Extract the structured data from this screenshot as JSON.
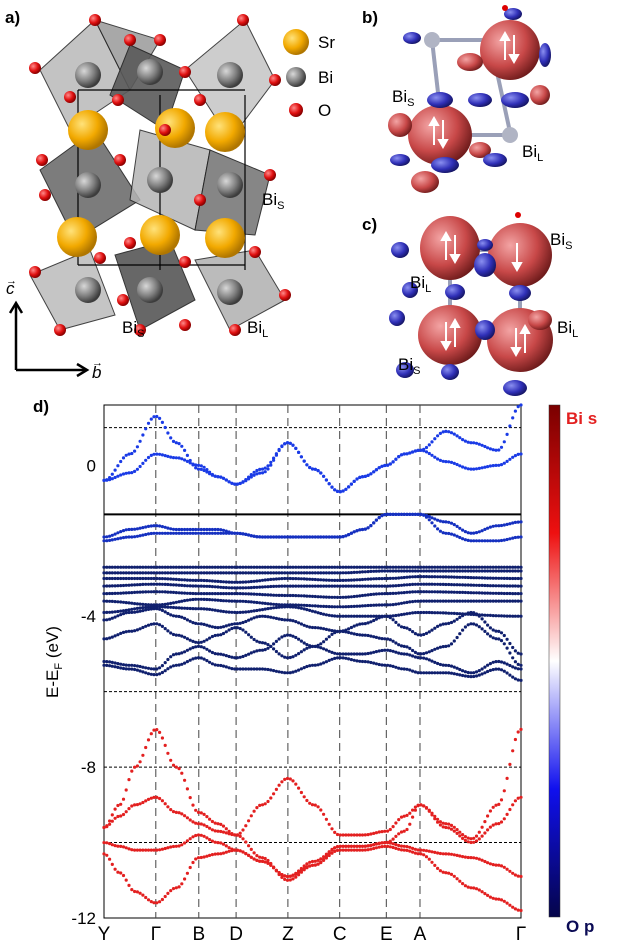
{
  "panels": {
    "a": "a)",
    "b": "b)",
    "c": "c)",
    "d": "d)"
  },
  "legend": [
    {
      "label": "Sr",
      "color": "#F2A900"
    },
    {
      "label": "Bi",
      "color": "#7a7a7a"
    },
    {
      "label": "O",
      "color": "#e01010"
    }
  ],
  "axes_labels": {
    "c_vec": "c",
    "b_vec": "b"
  },
  "atom_labels": {
    "a_bis_top": {
      "main": "Bi",
      "sub": "S"
    },
    "a_bis_bottom": {
      "main": "Bi",
      "sub": "S"
    },
    "a_bil": {
      "main": "Bi",
      "sub": "L"
    },
    "b_bis": {
      "main": "Bi",
      "sub": "S"
    },
    "b_bil": {
      "main": "Bi",
      "sub": "L"
    },
    "c_bis_top": {
      "main": "Bi",
      "sub": "S"
    },
    "c_bil_top": {
      "main": "Bi",
      "sub": "L"
    },
    "c_bil_bottom": {
      "main": "Bi",
      "sub": "L"
    },
    "c_bis_bottom": {
      "main": "Bi",
      "sub": "S"
    }
  },
  "colorbar": {
    "top_label": "Bi s",
    "bottom_label": "O p",
    "top_color": "#8b0000",
    "mid_color": "#ffffff",
    "bottom_color": "#0b0b55"
  },
  "chart_data": {
    "type": "line",
    "title": "",
    "xlabel": "",
    "ylabel": "E-E",
    "ylabel_sub": "F",
    "ylabel_unit": " (eV)",
    "ylim": [
      -12,
      1.6
    ],
    "yticks": [
      "0",
      "-4",
      "-8",
      "-12"
    ],
    "ytick_values": [
      0,
      -4,
      -8,
      -12
    ],
    "kpoints": [
      "Y",
      "Γ",
      "B",
      "D",
      "Z",
      "C",
      "E",
      "A",
      "Γ"
    ],
    "kpoint_positions": [
      0,
      1,
      1.83,
      2.55,
      3.55,
      4.55,
      5.45,
      6.1,
      8.05
    ],
    "hlines": [
      1.0,
      -1.3,
      -6.0,
      -8.0,
      -10.0
    ],
    "fermi_line": -1.3,
    "series": [
      {
        "color": "#1a3be6",
        "x": [
          0,
          0.5,
          1,
          1.4,
          1.83,
          2.2,
          2.55,
          3.05,
          3.55,
          4.05,
          4.55,
          5.0,
          5.45,
          5.8,
          6.1,
          6.6,
          7.1,
          7.6,
          8.05
        ],
        "y": [
          -0.4,
          0.3,
          1.3,
          0.6,
          -0.1,
          -0.3,
          -0.5,
          -0.1,
          0.6,
          -0.1,
          -0.7,
          -0.3,
          0,
          0.3,
          0.4,
          0.9,
          0.6,
          0.4,
          1.6
        ]
      },
      {
        "color": "#1a3be6",
        "x": [
          0,
          0.5,
          1,
          1.4,
          1.83,
          2.2,
          2.55,
          3.05,
          3.55,
          4.05,
          4.55,
          5.0,
          5.45,
          5.8,
          6.1,
          6.6,
          7.1,
          7.6,
          8.05
        ],
        "y": [
          -0.4,
          -0.2,
          0.3,
          0.2,
          0.0,
          -0.3,
          -0.5,
          -0.2,
          0.6,
          -0.1,
          -0.7,
          -0.3,
          0,
          0.3,
          0.4,
          0.1,
          -0.1,
          0.0,
          0.3
        ]
      },
      {
        "color": "#1530c0",
        "x": [
          0,
          0.5,
          1,
          1.4,
          1.83,
          2.2,
          2.55,
          3.05,
          3.55,
          4.05,
          4.55,
          5.0,
          5.45,
          5.8,
          6.1,
          6.6,
          7.1,
          7.6,
          8.05
        ],
        "y": [
          -1.9,
          -1.7,
          -1.6,
          -1.7,
          -1.7,
          -1.7,
          -1.8,
          -1.9,
          -1.9,
          -1.9,
          -1.9,
          -1.7,
          -1.3,
          -1.3,
          -1.3,
          -1.5,
          -1.8,
          -1.6,
          -1.5
        ]
      },
      {
        "color": "#1530c0",
        "x": [
          0,
          0.5,
          1,
          1.4,
          1.83,
          2.2,
          2.55,
          3.05,
          3.55,
          4.05,
          4.55,
          5.0,
          5.45,
          5.8,
          6.1,
          6.6,
          7.1,
          7.6,
          8.05
        ],
        "y": [
          -2.0,
          -1.9,
          -1.8,
          -1.8,
          -1.8,
          -1.8,
          -1.8,
          -1.9,
          -1.9,
          -1.9,
          -1.9,
          -1.7,
          -1.3,
          -1.3,
          -1.3,
          -1.8,
          -2.0,
          -2.0,
          -1.9
        ]
      },
      {
        "color": "#10206e",
        "x": [
          0,
          1,
          1.83,
          2.55,
          3.55,
          4.55,
          5.45,
          6.1,
          8.05
        ],
        "y": [
          -2.7,
          -2.7,
          -2.7,
          -2.7,
          -2.7,
          -2.7,
          -2.7,
          -2.7,
          -2.7
        ]
      },
      {
        "color": "#10206e",
        "x": [
          0,
          1,
          1.83,
          2.55,
          3.55,
          4.55,
          5.45,
          6.1,
          8.05
        ],
        "y": [
          -2.85,
          -2.85,
          -2.85,
          -2.85,
          -2.85,
          -2.85,
          -2.8,
          -2.8,
          -2.8
        ]
      },
      {
        "color": "#10206e",
        "x": [
          0,
          1,
          1.83,
          2.55,
          3.55,
          4.55,
          5.45,
          6.1,
          8.05
        ],
        "y": [
          -3.0,
          -3.0,
          -3.05,
          -3.1,
          -3.0,
          -3.05,
          -3.0,
          -2.95,
          -3.0
        ]
      },
      {
        "color": "#10206e",
        "x": [
          0,
          1,
          1.83,
          2.55,
          3.55,
          4.55,
          5.45,
          6.1,
          8.05
        ],
        "y": [
          -3.2,
          -3.15,
          -3.2,
          -3.25,
          -3.2,
          -3.2,
          -3.2,
          -3.15,
          -3.2
        ]
      },
      {
        "color": "#10206e",
        "x": [
          0,
          1,
          1.83,
          2.55,
          3.55,
          4.55,
          5.45,
          6.1,
          8.05
        ],
        "y": [
          -3.4,
          -3.35,
          -3.4,
          -3.4,
          -3.45,
          -3.5,
          -3.4,
          -3.35,
          -3.4
        ]
      },
      {
        "color": "#10206e",
        "x": [
          0,
          1,
          1.83,
          2.55,
          3.55,
          4.55,
          5.45,
          6.1,
          8.05
        ],
        "y": [
          -3.6,
          -3.7,
          -3.55,
          -3.6,
          -3.7,
          -3.75,
          -3.7,
          -3.6,
          -3.6
        ]
      },
      {
        "color": "#10206e",
        "x": [
          0,
          1,
          1.83,
          2.55,
          3.55,
          4.55,
          5.45,
          6.1,
          8.05
        ],
        "y": [
          -3.9,
          -3.75,
          -3.8,
          -3.9,
          -3.75,
          -4.0,
          -4.0,
          -3.9,
          -4.0
        ]
      },
      {
        "color": "#10206e",
        "x": [
          0,
          0.5,
          1,
          1.4,
          1.83,
          2.2,
          2.55,
          3.05,
          3.55,
          4.05,
          4.55,
          5.0,
          5.45,
          5.8,
          6.1,
          6.6,
          7.1,
          7.6,
          8.05
        ],
        "y": [
          -4.1,
          -3.9,
          -3.8,
          -4.0,
          -4.2,
          -4.3,
          -4.2,
          -4.0,
          -4.1,
          -4.3,
          -4.4,
          -4.2,
          -4.0,
          -4.3,
          -4.5,
          -4.2,
          -3.9,
          -4.4,
          -5.0
        ]
      },
      {
        "color": "#10206e",
        "x": [
          0,
          0.5,
          1,
          1.4,
          1.83,
          2.2,
          2.55,
          3.05,
          3.55,
          4.05,
          4.55,
          5.0,
          5.45,
          5.8,
          6.1,
          6.6,
          7.1,
          7.6,
          8.05
        ],
        "y": [
          -4.6,
          -4.4,
          -4.2,
          -4.5,
          -4.7,
          -4.5,
          -4.3,
          -4.7,
          -5.1,
          -4.8,
          -4.4,
          -4.5,
          -4.6,
          -4.8,
          -5.0,
          -4.8,
          -4.2,
          -4.6,
          -5.3
        ]
      },
      {
        "color": "#10206e",
        "x": [
          0,
          0.5,
          1,
          1.4,
          1.83,
          2.2,
          2.55,
          3.05,
          3.55,
          4.05,
          4.55,
          5.0,
          5.45,
          5.8,
          6.1,
          6.6,
          7.1,
          7.6,
          8.05
        ],
        "y": [
          -5.2,
          -5.3,
          -5.4,
          -5.0,
          -4.8,
          -5.0,
          -5.1,
          -4.9,
          -4.5,
          -4.8,
          -5.0,
          -5.0,
          -4.9,
          -5.0,
          -5.1,
          -5.3,
          -5.5,
          -5.2,
          -5.4
        ]
      },
      {
        "color": "#10206e",
        "x": [
          0,
          0.5,
          1,
          1.4,
          1.83,
          2.2,
          2.55,
          3.05,
          3.55,
          4.05,
          4.55,
          5.0,
          5.45,
          5.8,
          6.1,
          6.6,
          7.1,
          7.6,
          8.05
        ],
        "y": [
          -5.3,
          -5.4,
          -5.55,
          -5.3,
          -5.1,
          -5.3,
          -5.4,
          -5.4,
          -5.5,
          -5.3,
          -5.1,
          -5.2,
          -5.3,
          -5.4,
          -5.5,
          -5.5,
          -5.6,
          -5.4,
          -5.7
        ]
      },
      {
        "color": "#e32020",
        "x": [
          0,
          0.3,
          0.6,
          1,
          1.4,
          1.83,
          2.2,
          2.55,
          3.05,
          3.55,
          4.05,
          4.55,
          5.0,
          5.45,
          5.8,
          6.1,
          6.6,
          7.1,
          7.6,
          8.05
        ],
        "y": [
          -9.6,
          -9.0,
          -8.0,
          -7.0,
          -8.0,
          -9.2,
          -9.5,
          -9.8,
          -9.0,
          -8.3,
          -9.0,
          -9.8,
          -9.8,
          -9.7,
          -9.3,
          -9.0,
          -9.5,
          -9.9,
          -9.0,
          -7.0
        ]
      },
      {
        "color": "#e32020",
        "x": [
          0,
          0.3,
          0.6,
          1,
          1.4,
          1.83,
          2.2,
          2.55,
          3.05,
          3.55,
          4.05,
          4.55,
          5.0,
          5.45,
          5.8,
          6.1,
          6.6,
          7.1,
          7.6,
          8.05
        ],
        "y": [
          -9.6,
          -9.3,
          -9.0,
          -8.8,
          -9.2,
          -9.5,
          -9.7,
          -9.8,
          -10.4,
          -11.0,
          -10.6,
          -10.1,
          -10.1,
          -10.0,
          -9.7,
          -9.0,
          -9.6,
          -10.0,
          -9.5,
          -8.8
        ]
      },
      {
        "color": "#e32020",
        "x": [
          0,
          0.3,
          0.6,
          1,
          1.4,
          1.83,
          2.2,
          2.55,
          3.05,
          3.55,
          4.05,
          4.55,
          5.0,
          5.45,
          5.8,
          6.1,
          6.6,
          7.1,
          7.6,
          8.05
        ],
        "y": [
          -10.0,
          -10.1,
          -10.2,
          -10.2,
          -10.1,
          -9.8,
          -10.0,
          -10.2,
          -10.5,
          -10.9,
          -10.5,
          -10.1,
          -10.1,
          -10.0,
          -10.1,
          -10.2,
          -10.3,
          -10.4,
          -10.6,
          -10.9
        ]
      },
      {
        "color": "#e32020",
        "x": [
          0,
          0.3,
          0.6,
          1,
          1.4,
          1.83,
          2.2,
          2.55,
          3.05,
          3.55,
          4.05,
          4.55,
          5.0,
          5.45,
          5.8,
          6.1,
          6.6,
          7.1,
          7.6,
          8.05
        ],
        "y": [
          -10.3,
          -10.8,
          -11.3,
          -11.6,
          -11.2,
          -10.4,
          -10.3,
          -10.2,
          -10.5,
          -10.9,
          -10.6,
          -10.2,
          -10.2,
          -10.1,
          -10.2,
          -10.3,
          -10.8,
          -11.2,
          -11.5,
          -11.8
        ]
      }
    ]
  }
}
